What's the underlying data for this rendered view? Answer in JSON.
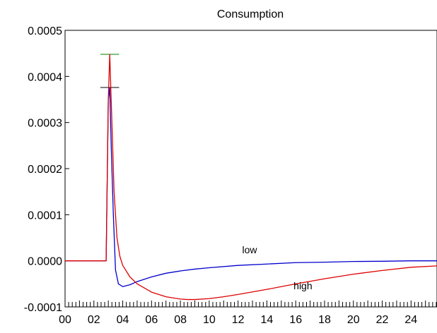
{
  "chart_data": {
    "type": "line",
    "title": "Consumption",
    "xlabel": "",
    "ylabel": "",
    "xlim": [
      0,
      25.8
    ],
    "ylim": [
      -0.0001,
      0.0005
    ],
    "x_ticks": [
      "00",
      "02",
      "04",
      "06",
      "08",
      "10",
      "12",
      "14",
      "16",
      "18",
      "20",
      "22",
      "24"
    ],
    "y_ticks": [
      "0.0005",
      "0.0004",
      "0.0003",
      "0.0002",
      "0.0001",
      "0.0000",
      "-0.0001"
    ],
    "grid": false,
    "legend": "none",
    "series": [
      {
        "name": "low",
        "color": "#0000cc",
        "x": [
          0,
          2,
          2.85,
          3.0,
          3.1,
          3.2,
          3.35,
          3.5,
          3.7,
          4.0,
          4.5,
          5.0,
          6.0,
          7.0,
          8.0,
          9.0,
          10.0,
          12.0,
          14.0,
          16.0,
          18.0,
          20.0,
          22.0,
          24.0,
          25.8
        ],
        "y": [
          0,
          0,
          0,
          0.00035,
          0.000375,
          0.00025,
          0.0001,
          -2e-05,
          -5e-05,
          -5.6e-05,
          -5.2e-05,
          -4.5e-05,
          -3.5e-05,
          -2.7e-05,
          -2.2e-05,
          -1.8e-05,
          -1.5e-05,
          -1e-05,
          -7e-06,
          -4e-06,
          -3e-06,
          -1.5e-06,
          -1e-06,
          0,
          0
        ]
      },
      {
        "name": "high",
        "color": "#dd0000",
        "x": [
          0,
          2,
          2.85,
          3.0,
          3.1,
          3.25,
          3.4,
          3.6,
          3.8,
          4.0,
          4.5,
          5.0,
          6.0,
          7.0,
          8.0,
          8.5,
          9.0,
          10.0,
          11.0,
          12.0,
          14.0,
          16.0,
          18.0,
          20.0,
          22.0,
          24.0,
          25.8
        ],
        "y": [
          0,
          0,
          0,
          0.00035,
          0.000448,
          0.0003,
          0.00015,
          5e-05,
          1e-05,
          -1e-05,
          -3.5e-05,
          -5e-05,
          -6.8e-05,
          -7.8e-05,
          -8.3e-05,
          -8.4e-05,
          -8.4e-05,
          -8.2e-05,
          -7.8e-05,
          -7.3e-05,
          -6.2e-05,
          -5e-05,
          -3.9e-05,
          -2.9e-05,
          -2.1e-05,
          -1.4e-05,
          -1.1e-05
        ]
      }
    ],
    "annotations": [
      {
        "type": "hline-marker",
        "x": [
          2.45,
          3.75
        ],
        "y": 0.000448,
        "color": "#008000"
      },
      {
        "type": "hline-marker",
        "x": [
          2.45,
          3.75
        ],
        "y": 0.000376,
        "color": "#000000"
      }
    ],
    "series_labels": [
      {
        "text": "low",
        "x": 12.8,
        "y": 1.65e-05
      },
      {
        "text": "high",
        "x": 16.5,
        "y": -6.2e-05
      }
    ]
  }
}
